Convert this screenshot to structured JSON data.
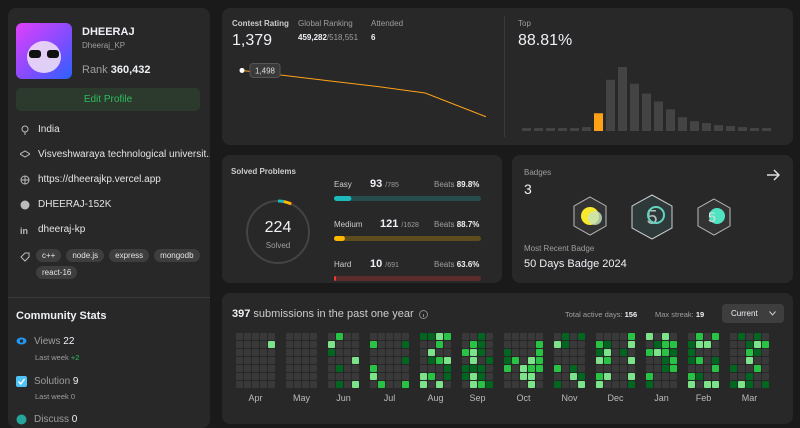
{
  "profile": {
    "name": "DHEERAJ",
    "username": "Dheeraj_KP",
    "rank_label": "Rank",
    "rank": "360,432",
    "edit_button": "Edit Profile",
    "location": "India",
    "school": "Visveshwaraya technological universit...",
    "website": "https://dheerajkp.vercel.app",
    "github": "DHEERAJ-152K",
    "linkedin": "dheeraj-kp",
    "skills": [
      "c++",
      "node.js",
      "express",
      "mongodb",
      "react-16"
    ]
  },
  "community": {
    "title": "Community Stats",
    "views_label": "Views",
    "views": "22",
    "views_week_label": "Last week",
    "views_week": "+2",
    "solution_label": "Solution",
    "solution": "9",
    "solution_week_label": "Last week",
    "solution_week": "0",
    "discuss_label": "Discuss",
    "discuss": "0"
  },
  "contest": {
    "rating_label": "Contest Rating",
    "rating": "1,379",
    "ranking_label": "Global Ranking",
    "ranking": "459,282",
    "ranking_total": "/518,551",
    "attended_label": "Attended",
    "attended": "6",
    "tooltip": "1,498",
    "history": [
      1498,
      1484,
      1470,
      1456,
      1440,
      1379
    ],
    "ylim": [
      1350,
      1530
    ]
  },
  "top": {
    "label": "Top",
    "value": "88.81%",
    "histogram": [
      3,
      3,
      3,
      3,
      3,
      4,
      18,
      52,
      65,
      48,
      38,
      30,
      22,
      14,
      10,
      8,
      6,
      5,
      4,
      3,
      3
    ],
    "highlight": 6
  },
  "solved": {
    "title": "Solved Problems",
    "count": "224",
    "count_label": "Solved",
    "separator": "/",
    "beats_label": "Beats",
    "levels": [
      {
        "name": "Easy",
        "solved": 93,
        "total": 785,
        "beats": "89.8%",
        "color": "#1cbaba"
      },
      {
        "name": "Medium",
        "solved": 121,
        "total": 1628,
        "beats": "88.7%",
        "color": "#ffb700"
      },
      {
        "name": "Hard",
        "solved": 10,
        "total": 691,
        "beats": "63.6%",
        "color": "#f63737"
      }
    ]
  },
  "badges": {
    "label": "Badges",
    "count": "3",
    "recent_label": "Most Recent Badge",
    "recent": "50 Days Badge 2024"
  },
  "submissions": {
    "count": "397",
    "text": "submissions in the past one year",
    "active_label": "Total active days:",
    "active": "156",
    "streak_label": "Max streak:",
    "streak": "19",
    "dropdown": "Current",
    "months": [
      "Apr",
      "May",
      "Jun",
      "Jul",
      "Aug",
      "Sep",
      "Oct",
      "Nov",
      "Dec",
      "Jan",
      "Feb",
      "Mar"
    ]
  }
}
